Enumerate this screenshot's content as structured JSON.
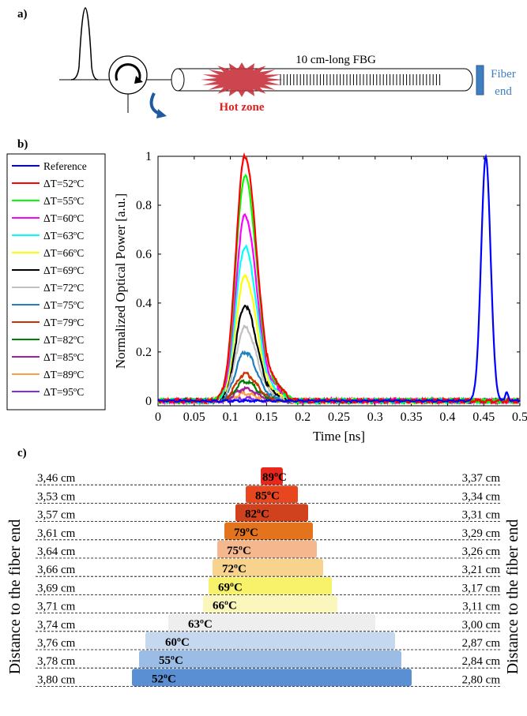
{
  "panel_a": {
    "label": "a)",
    "fbg_label": "10 cm-long FBG",
    "hot_zone_label": "Hot zone",
    "fiber_end_line1": "Fiber",
    "fiber_end_line2": "end",
    "colors": {
      "hot_zone": "#c8323c",
      "hot_zone_text": "#e0201f",
      "fiber_end": "#3f7fbf",
      "arrow": "#1f5aa0"
    }
  },
  "panel_b": {
    "label": "b)"
  },
  "panel_c": {
    "label": "c)",
    "ylabel": "Distance to the fiber end"
  },
  "chart_data": [
    {
      "type": "line",
      "xlabel": "Time [ns]",
      "ylabel": "Normalized Optical Power [a.u.]",
      "xlim": [
        0,
        0.5
      ],
      "ylim": [
        -0.02,
        1
      ],
      "x_ticks": [
        "0",
        "0.05",
        "0.1",
        "0.15",
        "0.2",
        "0.25",
        "0.3",
        "0.35",
        "0.4",
        "0.45",
        "0.5"
      ],
      "y_ticks": [
        "0",
        "0.2",
        "0.4",
        "0.6",
        "0.8",
        "1"
      ],
      "legend_position": "left outside",
      "series": [
        {
          "name": "Reference",
          "color": "#0000ff",
          "peak_x": 0.453,
          "peak_y": 1.0
        },
        {
          "name": "ΔT=52ºC",
          "color": "#ff0000",
          "peak_x": 0.12,
          "peak_y": 1.0
        },
        {
          "name": "ΔT=55ºC",
          "color": "#00ff00",
          "peak_x": 0.12,
          "peak_y": 0.92
        },
        {
          "name": "ΔT=60ºC",
          "color": "#ff00ff",
          "peak_x": 0.12,
          "peak_y": 0.76
        },
        {
          "name": "ΔT=63ºC",
          "color": "#00ffff",
          "peak_x": 0.12,
          "peak_y": 0.63
        },
        {
          "name": "ΔT=66ºC",
          "color": "#ffff00",
          "peak_x": 0.12,
          "peak_y": 0.51
        },
        {
          "name": "ΔT=69ºC",
          "color": "#000000",
          "peak_x": 0.12,
          "peak_y": 0.39
        },
        {
          "name": "ΔT=72ºC",
          "color": "#c0c0c0",
          "peak_x": 0.12,
          "peak_y": 0.3
        },
        {
          "name": "ΔT=75ºC",
          "color": "#1f7fbf",
          "peak_x": 0.12,
          "peak_y": 0.2
        },
        {
          "name": "ΔT=79ºC",
          "color": "#cc3300",
          "peak_x": 0.12,
          "peak_y": 0.11
        },
        {
          "name": "ΔT=82ºC",
          "color": "#008000",
          "peak_x": 0.12,
          "peak_y": 0.08
        },
        {
          "name": "ΔT=85ºC",
          "color": "#a020a0",
          "peak_x": 0.12,
          "peak_y": 0.05
        },
        {
          "name": "ΔT=89ºC",
          "color": "#ffa040",
          "peak_x": 0.12,
          "peak_y": 0.03
        },
        {
          "name": "ΔT=95ºC",
          "color": "#8a2be2",
          "peak_x": 0.12,
          "peak_y": 0.01
        }
      ]
    },
    {
      "type": "bar",
      "orientation": "horizontal",
      "ylabel": "Distance to the fiber end",
      "bars": [
        {
          "label": "89ºC",
          "left": "3,46 cm",
          "right": "3,37 cm",
          "color": "#e8281c"
        },
        {
          "label": "85ºC",
          "left": "3,53 cm",
          "right": "3,34 cm",
          "color": "#e8461e"
        },
        {
          "label": "82ºC",
          "left": "3,57 cm",
          "right": "3,31 cm",
          "color": "#d0421e"
        },
        {
          "label": "79ºC",
          "left": "3,61 cm",
          "right": "3,29 cm",
          "color": "#e4731e"
        },
        {
          "label": "75ºC",
          "left": "3,64 cm",
          "right": "3,26 cm",
          "color": "#f5b88e"
        },
        {
          "label": "72ºC",
          "left": "3,66 cm",
          "right": "3,21 cm",
          "color": "#f8d38e"
        },
        {
          "label": "69ºC",
          "left": "3,69 cm",
          "right": "3,17 cm",
          "color": "#f8f26a"
        },
        {
          "label": "66ºC",
          "left": "3,71 cm",
          "right": "3,11 cm",
          "color": "#faf6bc"
        },
        {
          "label": "63ºC",
          "left": "3,74 cm",
          "right": "3,00 cm",
          "color": "#eeeeee"
        },
        {
          "label": "60ºC",
          "left": "3,76 cm",
          "right": "2,87 cm",
          "color": "#c6d8f0"
        },
        {
          "label": "55ºC",
          "left": "3,78 cm",
          "right": "2,84 cm",
          "color": "#9bbde5"
        },
        {
          "label": "52ºC",
          "left": "3,80 cm",
          "right": "2,80 cm",
          "color": "#5b8fd4"
        }
      ]
    }
  ]
}
